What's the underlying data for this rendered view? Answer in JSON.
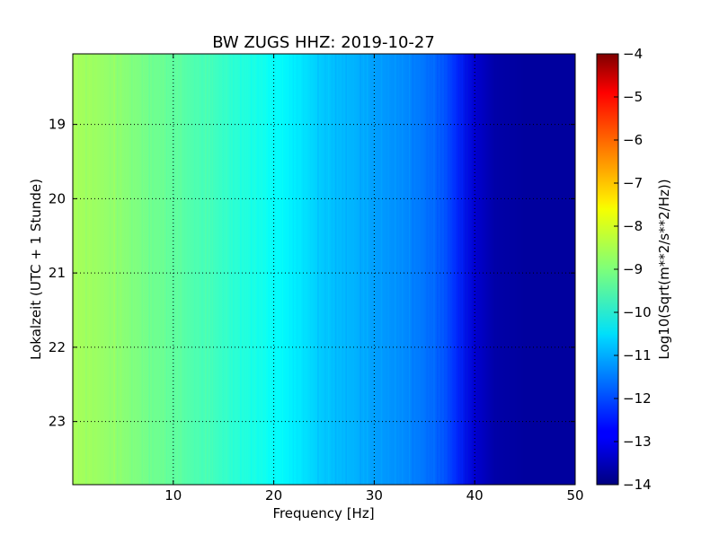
{
  "chart_data": {
    "type": "heatmap",
    "title": "BW ZUGS HHZ: 2019-10-27",
    "xlabel": "Frequency [Hz]",
    "ylabel": "Lokalzeit (UTC + 1 Stunde)",
    "xlim": [
      0,
      50
    ],
    "ylim": [
      18.05,
      23.85
    ],
    "y_inverted": true,
    "xticks": [
      10,
      20,
      30,
      40,
      50
    ],
    "yticks": [
      19,
      20,
      21,
      22,
      23
    ],
    "grid": true,
    "colormap": "jet",
    "colorbar": {
      "label": "Log10(Sqrt(m**2/s**2/Hz))",
      "range": [
        -14,
        -4
      ],
      "ticks": [
        -4,
        -5,
        -6,
        -7,
        -8,
        -9,
        -10,
        -11,
        -12,
        -13,
        -14
      ]
    },
    "spectrum_profile": {
      "frequency_hz": [
        0,
        2,
        5,
        10,
        15,
        20,
        22,
        25,
        28,
        30,
        33,
        35,
        37,
        38,
        40,
        42,
        45,
        50
      ],
      "log10_amplitude": [
        -8.6,
        -8.7,
        -8.9,
        -9.3,
        -9.7,
        -10.2,
        -10.4,
        -10.8,
        -11.0,
        -11.2,
        -11.4,
        -11.6,
        -11.9,
        -12.3,
        -13.2,
        -13.6,
        -13.7,
        -13.7
      ]
    }
  }
}
